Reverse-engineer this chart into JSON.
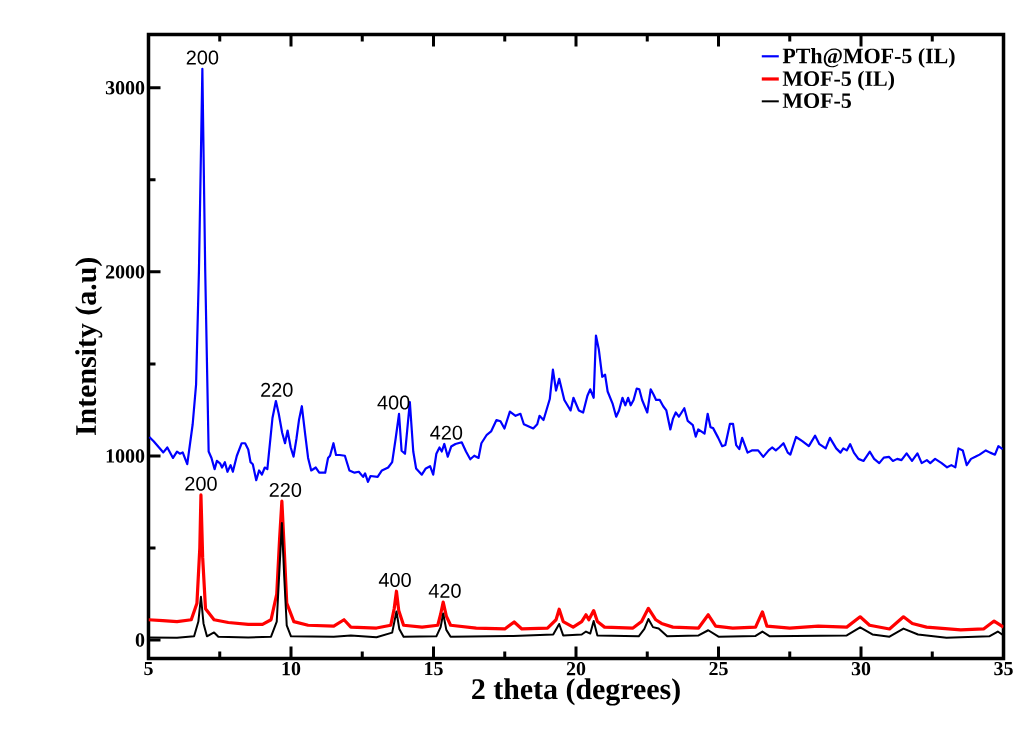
{
  "chart_data": {
    "type": "line",
    "xlabel": "2 theta (degrees)",
    "ylabel": "Intensity (a.u)",
    "xlim": [
      5,
      35
    ],
    "ylim": [
      -100,
      3290
    ],
    "xticks": [
      5,
      10,
      15,
      20,
      25,
      30,
      35
    ],
    "yticks": [
      0,
      1000,
      2000,
      3000
    ],
    "legend": "top right",
    "marker": "none",
    "series": [
      {
        "name": "PTh@MOF-5 (IL)",
        "color": "#0000ff",
        "x": [
          5.03,
          5.18,
          5.37,
          5.52,
          5.66,
          5.86,
          6.0,
          6.1,
          6.2,
          6.36,
          6.55,
          6.67,
          6.77,
          6.89,
          6.99,
          7.11,
          7.21,
          7.32,
          7.4,
          7.51,
          7.58,
          7.68,
          7.77,
          7.88,
          7.96,
          8.1,
          8.27,
          8.39,
          8.5,
          8.58,
          8.66,
          8.78,
          8.88,
          8.98,
          9.08,
          9.17,
          9.35,
          9.47,
          9.57,
          9.69,
          9.79,
          9.88,
          9.99,
          10.09,
          10.19,
          10.28,
          10.38,
          10.5,
          10.6,
          10.71,
          10.87,
          10.99,
          11.2,
          11.3,
          11.37,
          11.49,
          11.58,
          11.71,
          11.89,
          12.05,
          12.23,
          12.38,
          12.53,
          12.6,
          12.7,
          12.79,
          13.04,
          13.19,
          13.41,
          13.55,
          13.67,
          13.79,
          13.88,
          14.0,
          14.17,
          14.29,
          14.39,
          14.59,
          14.73,
          14.88,
          14.99,
          15.1,
          15.21,
          15.29,
          15.38,
          15.5,
          15.62,
          15.77,
          15.99,
          16.14,
          16.29,
          16.43,
          16.58,
          16.68,
          16.87,
          17.02,
          17.21,
          17.35,
          17.49,
          17.68,
          17.88,
          18.05,
          18.17,
          18.5,
          18.64,
          18.72,
          18.86,
          19.08,
          19.19,
          19.3,
          19.41,
          19.59,
          19.81,
          19.91,
          20.1,
          20.25,
          20.4,
          20.5,
          20.62,
          20.7,
          20.8,
          20.92,
          21.02,
          21.11,
          21.29,
          21.41,
          21.51,
          21.63,
          21.73,
          21.83,
          21.92,
          22.02,
          22.13,
          22.22,
          22.32,
          22.5,
          22.62,
          22.72,
          22.81,
          22.94,
          23.06,
          23.17,
          23.31,
          23.4,
          23.5,
          23.61,
          23.8,
          23.92,
          24.1,
          24.2,
          24.29,
          24.51,
          24.62,
          24.72,
          24.81,
          24.99,
          25.13,
          25.24,
          25.4,
          25.51,
          25.62,
          25.73,
          25.83,
          26.02,
          26.17,
          26.39,
          26.57,
          26.76,
          26.88,
          27.01,
          27.13,
          27.28,
          27.43,
          27.52,
          27.72,
          27.94,
          28.17,
          28.39,
          28.54,
          28.76,
          28.91,
          29.13,
          29.28,
          29.38,
          29.5,
          29.62,
          29.75,
          29.91,
          30.09,
          30.31,
          30.46,
          30.64,
          30.8,
          30.98,
          31.12,
          31.27,
          31.42,
          31.6,
          31.79,
          31.98,
          32.13,
          32.31,
          32.43,
          32.6,
          32.83,
          33.02,
          33.17,
          33.31,
          33.42,
          33.57,
          33.71,
          33.86,
          34.01,
          34.16,
          34.38,
          34.53,
          34.7,
          34.82,
          34.97
        ],
        "values": [
          1103,
          1080,
          1046,
          1019,
          1046,
          989,
          1023,
          1012,
          1019,
          955,
          1172,
          1389,
          2006,
          3103,
          2006,
          1024,
          989,
          928,
          973,
          960,
          937,
          966,
          914,
          950,
          914,
          1001,
          1069,
          1069,
          1035,
          966,
          955,
          868,
          921,
          898,
          937,
          928,
          1206,
          1298,
          1229,
          1126,
          1069,
          1138,
          1046,
          996,
          1092,
          1195,
          1270,
          1115,
          989,
          921,
          937,
          909,
          909,
          989,
          1001,
          1069,
          1005,
          1005,
          1001,
          921,
          909,
          914,
          886,
          905,
          859,
          891,
          886,
          921,
          937,
          966,
          1092,
          1229,
          1028,
          1012,
          1293,
          1024,
          932,
          898,
          932,
          944,
          898,
          1012,
          1046,
          1024,
          1065,
          996,
          1051,
          1065,
          1074,
          1024,
          982,
          1001,
          989,
          1069,
          1115,
          1133,
          1195,
          1188,
          1149,
          1241,
          1218,
          1229,
          1172,
          1149,
          1172,
          1218,
          1195,
          1309,
          1469,
          1355,
          1419,
          1304,
          1247,
          1316,
          1247,
          1236,
          1327,
          1362,
          1316,
          1654,
          1579,
          1430,
          1442,
          1350,
          1281,
          1213,
          1247,
          1316,
          1275,
          1316,
          1275,
          1304,
          1366,
          1362,
          1304,
          1236,
          1362,
          1334,
          1304,
          1304,
          1270,
          1247,
          1144,
          1201,
          1236,
          1213,
          1259,
          1190,
          1167,
          1105,
          1144,
          1121,
          1229,
          1156,
          1151,
          1098,
          1053,
          1059,
          1174,
          1174,
          1059,
          1037,
          1098,
          1018,
          1030,
          1030,
          995,
          1030,
          1046,
          1030,
          1046,
          1069,
          1018,
          1007,
          1103,
          1080,
          1053,
          1110,
          1064,
          1041,
          1098,
          1041,
          1018,
          1041,
          1030,
          1064,
          1018,
          984,
          973,
          1023,
          984,
          961,
          991,
          995,
          973,
          984,
          977,
          1014,
          973,
          1014,
          961,
          977,
          961,
          984,
          961,
          938,
          950,
          938,
          1041,
          1030,
          950,
          984,
          995,
          1007,
          1030,
          1018,
          1007,
          1053,
          1037
        ]
      },
      {
        "name": "MOF-5 (IL)",
        "color": "#ff0000",
        "x": [
          5.0,
          5.5,
          6.0,
          6.5,
          6.7,
          6.8,
          6.84,
          6.9,
          7.0,
          7.3,
          7.8,
          8.5,
          9.0,
          9.3,
          9.5,
          9.6,
          9.68,
          9.76,
          9.85,
          10.1,
          10.6,
          11.5,
          11.86,
          12.1,
          13.0,
          13.5,
          13.62,
          13.7,
          13.78,
          13.95,
          14.6,
          15.15,
          15.25,
          15.34,
          15.45,
          15.6,
          16.5,
          17.5,
          17.83,
          18.1,
          19.0,
          19.3,
          19.41,
          19.55,
          19.9,
          20.2,
          20.35,
          20.45,
          20.62,
          20.75,
          21.0,
          22.0,
          22.3,
          22.54,
          22.8,
          23.0,
          23.4,
          24.3,
          24.64,
          24.9,
          25.5,
          26.3,
          26.54,
          26.7,
          27.5,
          28.5,
          29.5,
          29.97,
          30.3,
          31.0,
          31.49,
          31.8,
          32.3,
          33.5,
          34.3,
          34.67,
          35.0
        ],
        "values": [
          110,
          105,
          100,
          110,
          200,
          500,
          788,
          450,
          170,
          110,
          95,
          85,
          85,
          110,
          250,
          550,
          754,
          500,
          200,
          100,
          80,
          75,
          110,
          70,
          65,
          80,
          170,
          265,
          160,
          80,
          70,
          80,
          140,
          206,
          130,
          80,
          65,
          60,
          98,
          60,
          65,
          110,
          167,
          100,
          70,
          100,
          137,
          110,
          160,
          100,
          70,
          65,
          100,
          172,
          110,
          90,
          70,
          65,
          137,
          75,
          65,
          70,
          153,
          75,
          65,
          75,
          70,
          126,
          80,
          60,
          126,
          90,
          70,
          55,
          60,
          103,
          70
        ]
      },
      {
        "name": "MOF-5",
        "color": "#000000",
        "x": [
          5.0,
          6.0,
          6.6,
          6.75,
          6.84,
          6.93,
          7.05,
          7.3,
          7.45,
          8.5,
          9.3,
          9.5,
          9.6,
          9.68,
          9.76,
          9.85,
          10.0,
          11.5,
          12.1,
          13.0,
          13.55,
          13.7,
          13.8,
          13.95,
          15.1,
          15.25,
          15.34,
          15.45,
          15.6,
          17.8,
          19.2,
          19.41,
          19.55,
          20.2,
          20.35,
          20.5,
          20.62,
          20.75,
          22.2,
          22.4,
          22.54,
          22.7,
          22.9,
          23.2,
          24.3,
          24.64,
          25.0,
          26.3,
          26.54,
          26.8,
          29.5,
          29.97,
          30.4,
          31.0,
          31.49,
          32.0,
          33.0,
          34.5,
          34.8,
          35.0
        ],
        "values": [
          14,
          12,
          20,
          100,
          235,
          90,
          20,
          41,
          18,
          14,
          18,
          100,
          400,
          635,
          350,
          80,
          20,
          18,
          25,
          15,
          40,
          155,
          60,
          18,
          20,
          70,
          144,
          55,
          18,
          22,
          30,
          87,
          25,
          30,
          46,
          35,
          103,
          25,
          20,
          60,
          114,
          70,
          62,
          20,
          25,
          53,
          18,
          22,
          46,
          20,
          25,
          69,
          30,
          18,
          62,
          30,
          12,
          20,
          46,
          25
        ]
      }
    ],
    "annotations": [
      {
        "text": "200",
        "x": 6.89,
        "y": 3103
      },
      {
        "text": "220",
        "x": 9.5,
        "y": 1298
      },
      {
        "text": "400",
        "x": 13.6,
        "y": 1229
      },
      {
        "text": "420",
        "x": 15.45,
        "y": 1065
      },
      {
        "text": "200",
        "x": 6.84,
        "y": 788
      },
      {
        "text": "220",
        "x": 9.8,
        "y": 754
      },
      {
        "text": "400",
        "x": 13.65,
        "y": 265
      },
      {
        "text": "420",
        "x": 15.4,
        "y": 206
      }
    ]
  }
}
